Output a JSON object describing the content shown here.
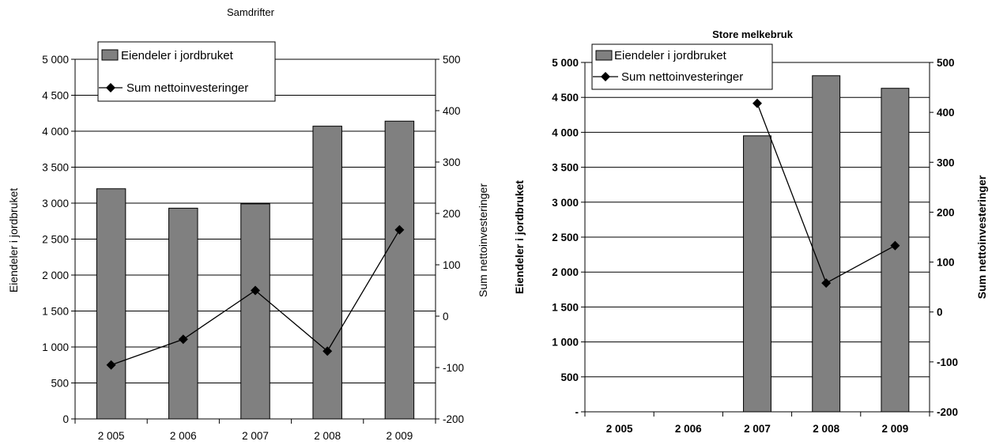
{
  "colors": {
    "bar_fill": "#808080",
    "bar_stroke": "#000000",
    "line": "#000000",
    "gridline": "#000000",
    "background": "#ffffff"
  },
  "chart_data": [
    {
      "type": "bar+line",
      "title": "Samdrifter",
      "categories": [
        "2 005",
        "2 006",
        "2 007",
        "2 008",
        "2 009"
      ],
      "series": [
        {
          "name": "Eiendeler i jordbruket",
          "type": "bar",
          "axis": "left",
          "values": [
            3200,
            2930,
            2990,
            4070,
            4140
          ]
        },
        {
          "name": "Sum nettoinvesteringer",
          "type": "line",
          "axis": "right",
          "marker": "diamond",
          "values": [
            -95,
            -45,
            50,
            -68,
            168
          ]
        }
      ],
      "ylabel": "Eiendeler i jordbruket",
      "y2label": "Sum nettoinvesteringer",
      "ylim": [
        0,
        5000
      ],
      "y2lim": [
        -200,
        500
      ],
      "yticks": [
        "0",
        "500",
        "1 000",
        "1 500",
        "2 000",
        "2 500",
        "3 000",
        "3 500",
        "4 000",
        "4 500",
        "5 000"
      ],
      "y2ticks": [
        "-200",
        "-100",
        "0",
        "100",
        "200",
        "300",
        "400",
        "500"
      ],
      "grid": true,
      "legend": "top-left",
      "bold_labels": false
    },
    {
      "type": "bar+line",
      "title": "Store melkebruk",
      "categories": [
        "2 005",
        "2 006",
        "2 007",
        "2 008",
        "2 009"
      ],
      "series": [
        {
          "name": "Eiendeler i jordbruket",
          "type": "bar",
          "axis": "left",
          "values": [
            null,
            null,
            3950,
            4810,
            4630
          ]
        },
        {
          "name": "Sum nettoinvesteringer",
          "type": "line",
          "axis": "right",
          "marker": "diamond",
          "values": [
            null,
            null,
            418,
            58,
            133
          ]
        }
      ],
      "ylabel": "Eiendeler i jordbruket",
      "y2label": "Sum nettoinvesteringer",
      "ylim": [
        0,
        5000
      ],
      "y2lim": [
        -200,
        500
      ],
      "yticks": [
        "-",
        "500",
        "1 000",
        "1 500",
        "2 000",
        "2 500",
        "3 000",
        "3 500",
        "4 000",
        "4 500",
        "5 000"
      ],
      "y2ticks": [
        "-200",
        "-100",
        "0",
        "100",
        "200",
        "300",
        "400",
        "500"
      ],
      "grid": true,
      "legend": "top-left",
      "bold_labels": true
    }
  ]
}
